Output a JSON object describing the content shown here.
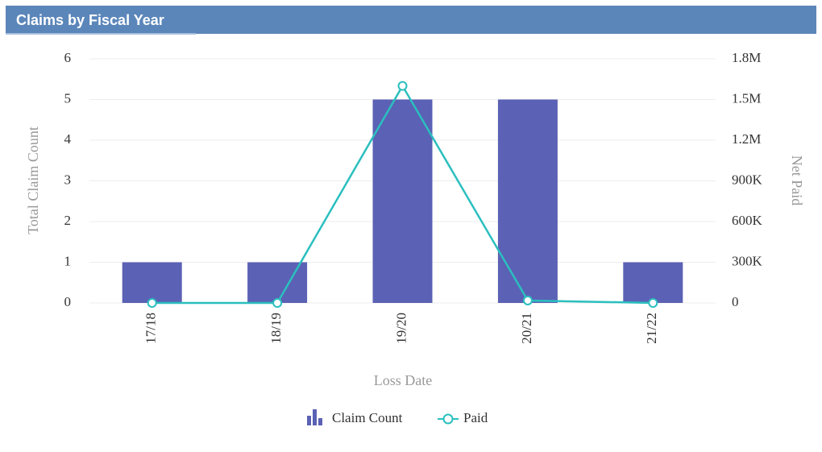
{
  "chart_data": {
    "type": "bar-line",
    "title": "Claims by Fiscal Year",
    "x_label": "Loss Date",
    "y_label": "Total Claim Count",
    "y2_label": "Net Paid",
    "categories": [
      "17/18",
      "18/19",
      "19/20",
      "20/21",
      "21/22"
    ],
    "series": [
      {
        "name": "Claim Count",
        "type": "bar",
        "color": "#5b61b4",
        "values": [
          1,
          1,
          5,
          5,
          1
        ]
      },
      {
        "name": "Paid",
        "type": "line",
        "color": "#2bbfbf",
        "axis": "y2",
        "values": [
          0,
          0,
          1600000,
          18000,
          0
        ]
      }
    ],
    "ylim": [
      0,
      6
    ],
    "yticks": [
      0,
      1,
      2,
      3,
      4,
      5,
      6
    ],
    "y2lim": [
      0,
      1800000
    ],
    "y2ticks": [
      0,
      {
        "value": 300000,
        "label": "300K"
      },
      {
        "value": 600000,
        "label": "600K"
      },
      {
        "value": 900000,
        "label": "900K"
      },
      {
        "value": 1200000,
        "label": "1.2M"
      },
      {
        "value": 1500000,
        "label": "1.5M"
      },
      {
        "value": 1800000,
        "label": "1.8M"
      }
    ],
    "grid": true,
    "legend": "bottom"
  }
}
